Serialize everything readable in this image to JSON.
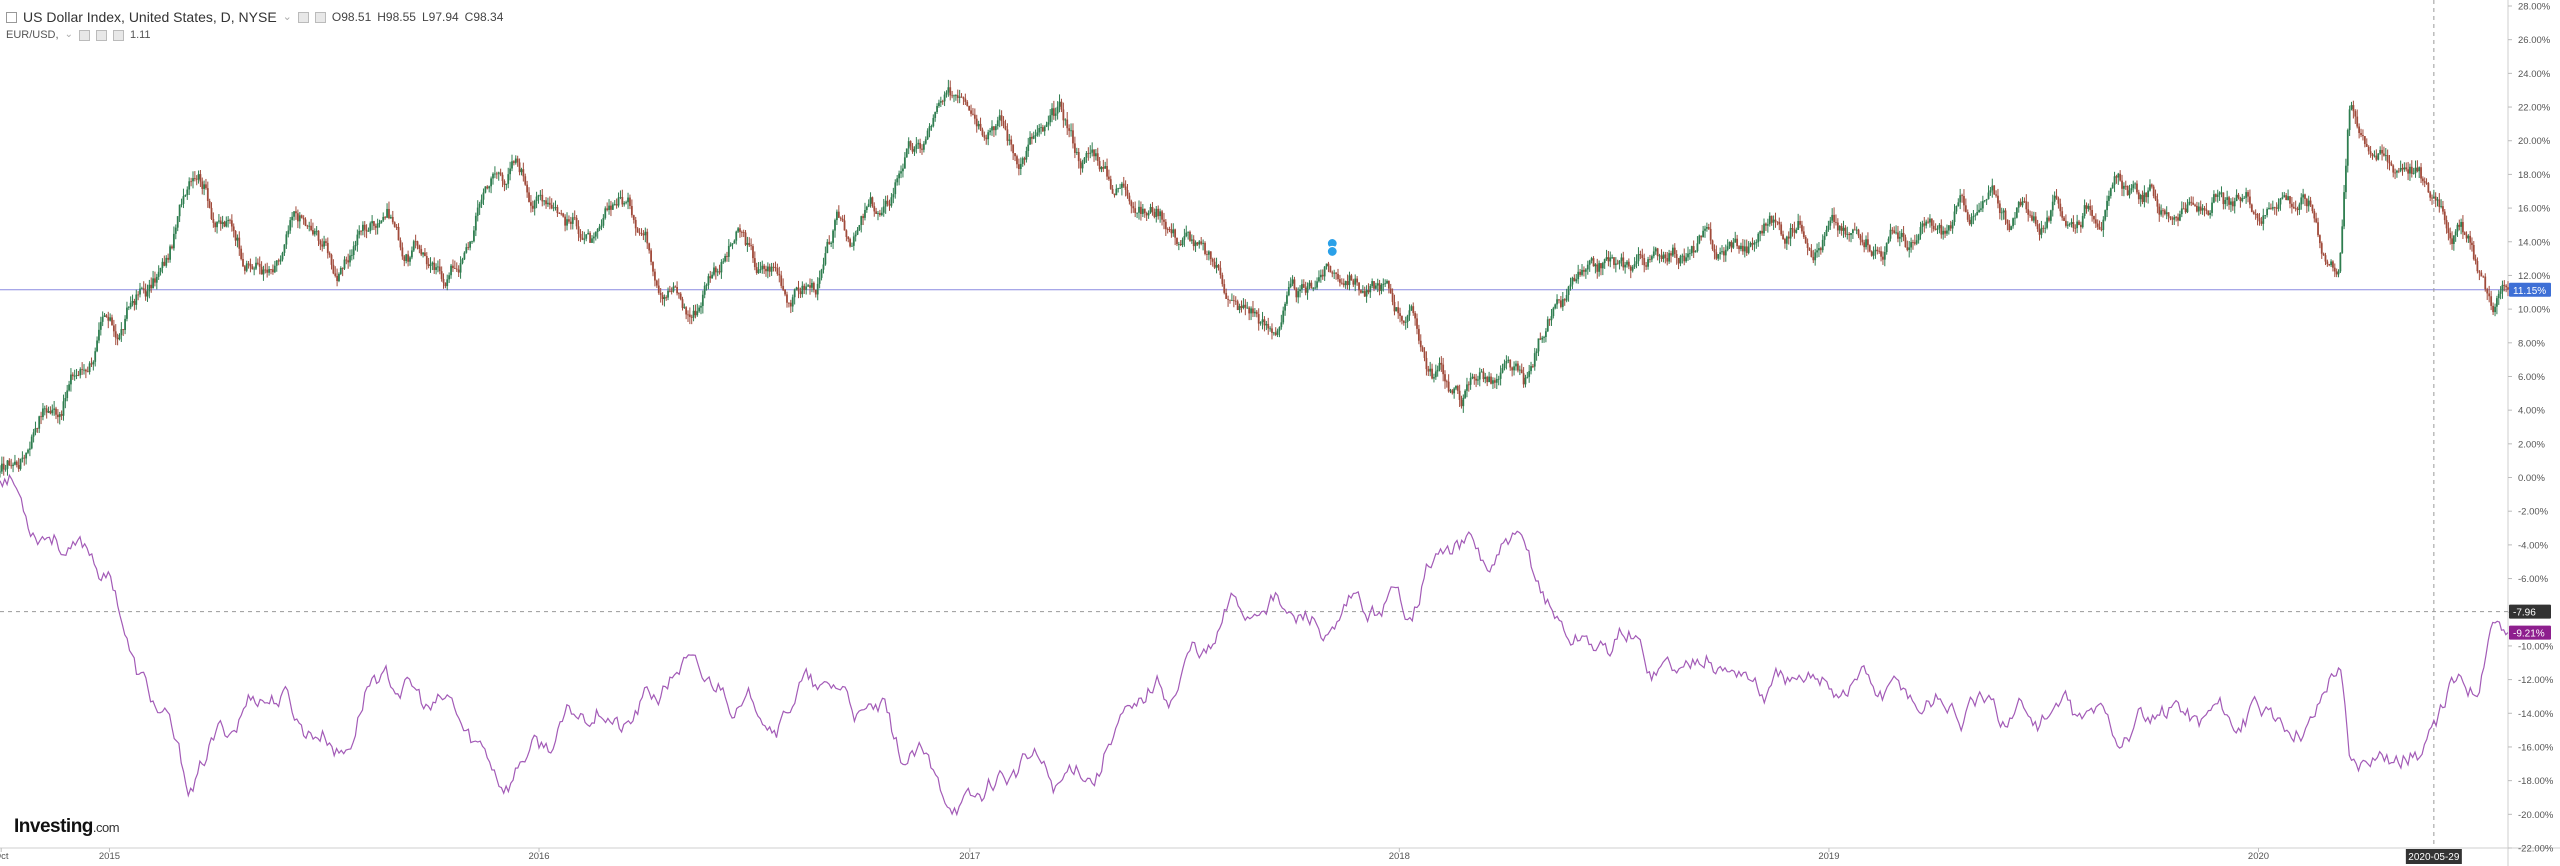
{
  "legend": {
    "main_title": "US Dollar Index, United States, D, NYSE",
    "main_caret": "⌄",
    "open": "O98.51",
    "high": "H98.55",
    "low": "L97.94",
    "close": "C98.34",
    "compare_title": "EUR/USD,",
    "compare_caret": "⌄",
    "compare_value": "1.11"
  },
  "brand": {
    "name": "Investing",
    "suffix": ".com"
  },
  "colors": {
    "up": "#2e7d4f",
    "down": "#a04a3a",
    "compare_line": "#a35bb7",
    "blue_line": "#8a8ae0",
    "blue_badge": "#3d6fd6",
    "purple_badge": "#8e1f8e",
    "dark_badge": "#333333",
    "marker": "#2aa0e8"
  },
  "chart_data": {
    "type": "line",
    "y_axis_ticks": [
      "28.00%",
      "26.00%",
      "24.00%",
      "22.00%",
      "20.00%",
      "18.00%",
      "16.00%",
      "14.00%",
      "12.00%",
      "10.00%",
      "8.00%",
      "6.00%",
      "4.00%",
      "2.00%",
      "0.00%",
      "-2.00%",
      "-4.00%",
      "-6.00%",
      "-8.00%",
      "-10.00%",
      "-12.00%",
      "-14.00%",
      "-16.00%",
      "-18.00%",
      "-20.00%",
      "-22.00%"
    ],
    "ylim": [
      -22,
      28
    ],
    "x_axis_labels": [
      "Oct",
      "2015",
      "2016",
      "2017",
      "2018",
      "2019",
      "2020"
    ],
    "x_range": [
      "2014-09-30",
      "2020-07-31"
    ],
    "crosshair_date": "2020-05-29",
    "horizontal_line_value": 11.15,
    "dashed_line_value": -7.96,
    "badges": [
      {
        "label": "11.15%",
        "value": 11.15,
        "kind": "blue"
      },
      {
        "label": "-7.96",
        "value": -7.96,
        "kind": "dark"
      },
      {
        "label": "-9.21%",
        "value": -9.21,
        "kind": "purple"
      }
    ],
    "series": [
      {
        "name": "US Dollar Index",
        "style": "candles",
        "points": [
          [
            "2014-09-30",
            0.0
          ],
          [
            "2014-11-15",
            4.5
          ],
          [
            "2014-12-31",
            8.5
          ],
          [
            "2015-02-15",
            12.0
          ],
          [
            "2015-03-13",
            18.5
          ],
          [
            "2015-04-15",
            14.5
          ],
          [
            "2015-05-15",
            12.0
          ],
          [
            "2015-06-15",
            15.0
          ],
          [
            "2015-07-15",
            12.5
          ],
          [
            "2015-08-20",
            16.0
          ],
          [
            "2015-09-15",
            13.5
          ],
          [
            "2015-10-15",
            12.0
          ],
          [
            "2015-12-01",
            18.5
          ],
          [
            "2016-01-15",
            16.5
          ],
          [
            "2016-02-15",
            14.0
          ],
          [
            "2016-03-15",
            16.5
          ],
          [
            "2016-04-15",
            12.5
          ],
          [
            "2016-05-05",
            10.0
          ],
          [
            "2016-06-15",
            14.0
          ],
          [
            "2016-07-15",
            12.0
          ],
          [
            "2016-08-15",
            11.0
          ],
          [
            "2016-09-15",
            14.5
          ],
          [
            "2016-10-15",
            15.5
          ],
          [
            "2016-11-15",
            19.5
          ],
          [
            "2016-12-25",
            23.0
          ],
          [
            "2017-01-15",
            22.0
          ],
          [
            "2017-02-15",
            19.5
          ],
          [
            "2017-03-15",
            21.0
          ],
          [
            "2017-04-15",
            19.0
          ],
          [
            "2017-05-15",
            17.0
          ],
          [
            "2017-06-15",
            15.5
          ],
          [
            "2017-07-15",
            13.5
          ],
          [
            "2017-08-15",
            10.5
          ],
          [
            "2017-09-10",
            9.0
          ],
          [
            "2017-10-15",
            11.0
          ],
          [
            "2017-11-05",
            12.5
          ],
          [
            "2017-12-01",
            11.5
          ],
          [
            "2017-12-31",
            10.5
          ],
          [
            "2018-02-01",
            6.5
          ],
          [
            "2018-02-15",
            5.0
          ],
          [
            "2018-03-15",
            6.0
          ],
          [
            "2018-04-15",
            5.5
          ],
          [
            "2018-05-15",
            10.0
          ],
          [
            "2018-06-15",
            12.0
          ],
          [
            "2018-07-15",
            12.5
          ],
          [
            "2018-08-15",
            13.5
          ],
          [
            "2018-10-15",
            13.5
          ],
          [
            "2018-11-15",
            15.0
          ],
          [
            "2019-01-15",
            14.5
          ],
          [
            "2019-03-15",
            14.0
          ],
          [
            "2019-05-15",
            16.0
          ],
          [
            "2019-07-15",
            15.5
          ],
          [
            "2019-09-15",
            17.0
          ],
          [
            "2019-10-15",
            16.0
          ],
          [
            "2019-12-15",
            16.0
          ],
          [
            "2020-01-31",
            17.0
          ],
          [
            "2020-03-09",
            13.0
          ],
          [
            "2020-03-20",
            22.0
          ],
          [
            "2020-04-15",
            19.0
          ],
          [
            "2020-05-15",
            18.5
          ],
          [
            "2020-05-29",
            16.5
          ],
          [
            "2020-06-15",
            15.5
          ],
          [
            "2020-07-05",
            12.5
          ],
          [
            "2020-07-20",
            10.5
          ],
          [
            "2020-07-31",
            11.15
          ]
        ]
      },
      {
        "name": "EUR/USD",
        "style": "line",
        "points": [
          [
            "2014-09-30",
            0.0
          ],
          [
            "2014-11-15",
            -3.5
          ],
          [
            "2014-12-31",
            -5.5
          ],
          [
            "2015-01-26",
            -12.0
          ],
          [
            "2015-03-13",
            -18.0
          ],
          [
            "2015-04-15",
            -14.5
          ],
          [
            "2015-05-15",
            -12.5
          ],
          [
            "2015-06-15",
            -14.5
          ],
          [
            "2015-07-15",
            -16.0
          ],
          [
            "2015-08-20",
            -11.5
          ],
          [
            "2015-09-15",
            -13.0
          ],
          [
            "2015-10-15",
            -14.0
          ],
          [
            "2015-11-30",
            -17.5
          ],
          [
            "2016-01-15",
            -15.5
          ],
          [
            "2016-02-15",
            -13.5
          ],
          [
            "2016-03-15",
            -14.5
          ],
          [
            "2016-05-03",
            -11.5
          ],
          [
            "2016-06-15",
            -13.0
          ],
          [
            "2016-07-15",
            -14.0
          ],
          [
            "2016-08-15",
            -12.5
          ],
          [
            "2016-09-15",
            -13.0
          ],
          [
            "2016-10-15",
            -14.5
          ],
          [
            "2016-11-15",
            -17.0
          ],
          [
            "2016-12-25",
            -19.5
          ],
          [
            "2017-01-15",
            -18.5
          ],
          [
            "2017-02-15",
            -17.0
          ],
          [
            "2017-03-15",
            -18.0
          ],
          [
            "2017-04-15",
            -17.0
          ],
          [
            "2017-05-15",
            -14.0
          ],
          [
            "2017-06-15",
            -12.5
          ],
          [
            "2017-07-15",
            -10.5
          ],
          [
            "2017-08-15",
            -8.0
          ],
          [
            "2017-09-08",
            -7.0
          ],
          [
            "2017-10-15",
            -8.5
          ],
          [
            "2017-11-05",
            -9.5
          ],
          [
            "2017-12-01",
            -8.0
          ],
          [
            "2017-12-31",
            -7.5
          ],
          [
            "2018-02-15",
            -4.0
          ],
          [
            "2018-03-15",
            -5.0
          ],
          [
            "2018-04-15",
            -4.5
          ],
          [
            "2018-05-15",
            -8.5
          ],
          [
            "2018-06-15",
            -10.0
          ],
          [
            "2018-07-15",
            -9.5
          ],
          [
            "2018-08-15",
            -11.5
          ],
          [
            "2018-09-15",
            -10.5
          ],
          [
            "2018-11-15",
            -12.5
          ],
          [
            "2019-01-15",
            -12.0
          ],
          [
            "2019-03-15",
            -13.0
          ],
          [
            "2019-05-15",
            -14.0
          ],
          [
            "2019-07-15",
            -14.0
          ],
          [
            "2019-09-15",
            -15.0
          ],
          [
            "2019-10-15",
            -14.0
          ],
          [
            "2019-12-15",
            -14.0
          ],
          [
            "2020-01-31",
            -15.0
          ],
          [
            "2020-03-09",
            -11.5
          ],
          [
            "2020-03-20",
            -16.5
          ],
          [
            "2020-04-15",
            -16.0
          ],
          [
            "2020-05-15",
            -16.5
          ],
          [
            "2020-05-29",
            -15.0
          ],
          [
            "2020-06-15",
            -13.0
          ],
          [
            "2020-07-01",
            -12.0
          ],
          [
            "2020-07-20",
            -8.0
          ],
          [
            "2020-07-31",
            -9.21
          ]
        ]
      }
    ]
  }
}
